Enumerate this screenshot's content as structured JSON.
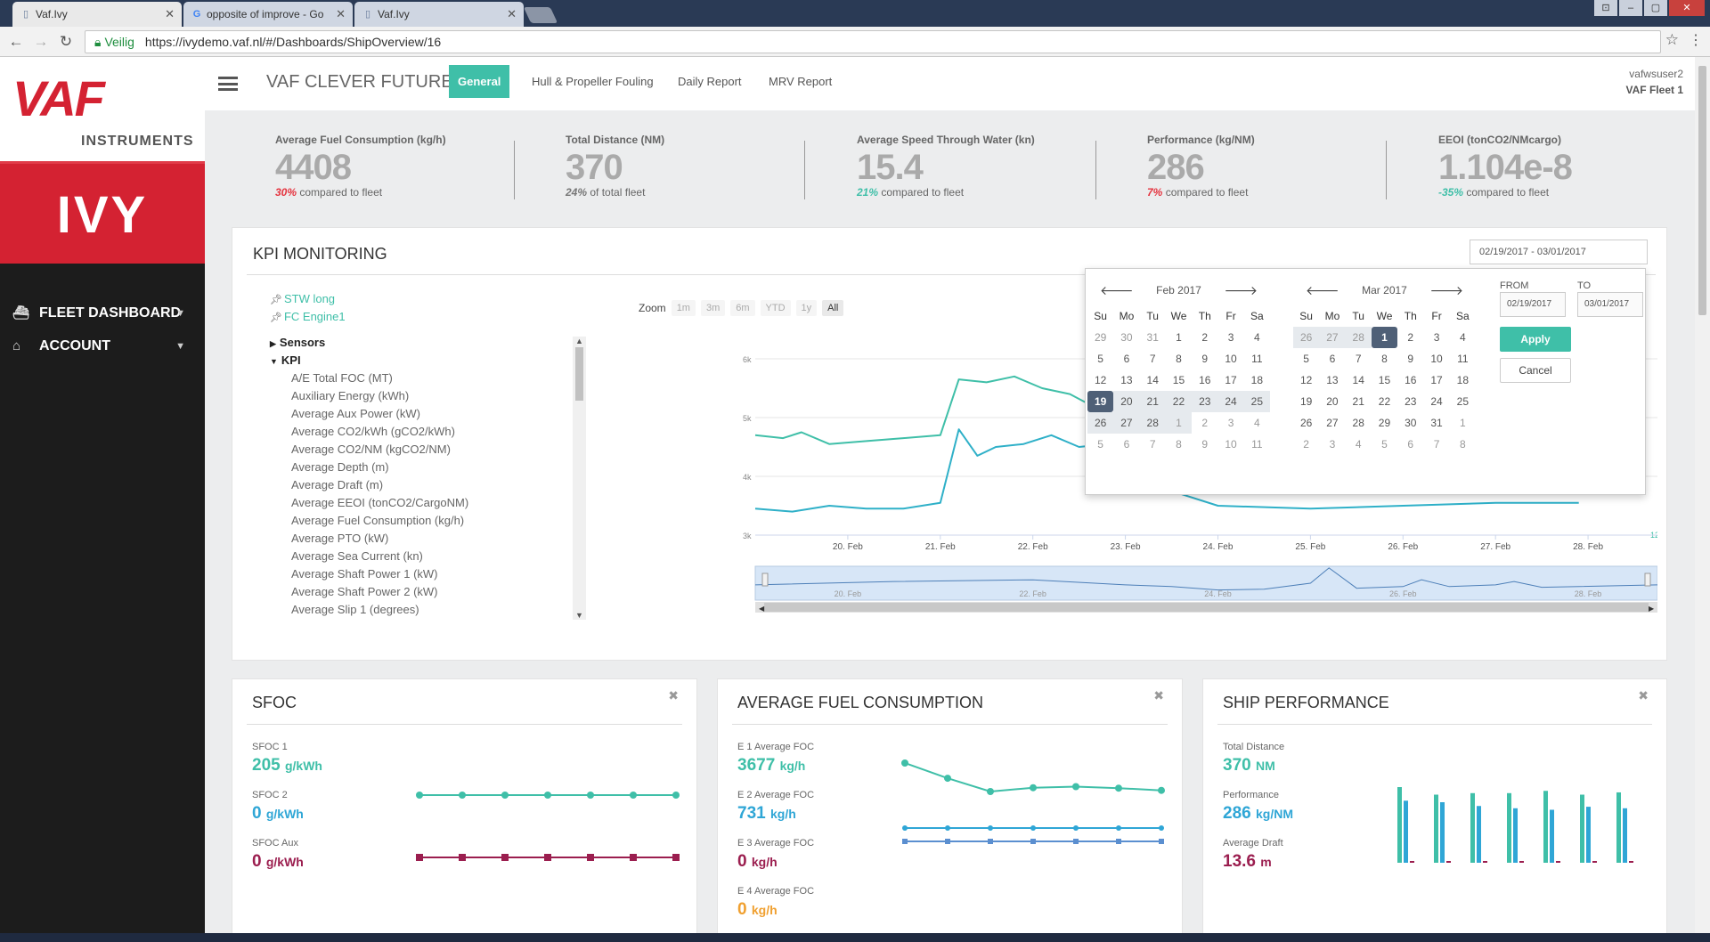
{
  "browser": {
    "tabs": [
      {
        "title": "Vaf.Ivy"
      },
      {
        "title": "opposite of improve - Go"
      },
      {
        "title": "Vaf.Ivy"
      }
    ],
    "secure_label": "Veilig",
    "url": "https://ivydemo.vaf.nl/#/Dashboards/ShipOverview/16"
  },
  "sidebar": {
    "logo_vaf": "VAF",
    "logo_instruments": "INSTRUMENTS",
    "app_name": "IVY",
    "items": [
      {
        "label": "FLEET DASHBOARD",
        "icon": "ship-icon"
      },
      {
        "label": "ACCOUNT",
        "icon": "home-icon"
      }
    ]
  },
  "topnav": {
    "brand": "VAF CLEVER FUTURE",
    "tabs": [
      {
        "label": "General",
        "active": true
      },
      {
        "label": "Hull & Propeller Fouling"
      },
      {
        "label": "Daily Report"
      },
      {
        "label": "MRV Report"
      }
    ],
    "user": "vafwsuser2",
    "fleet": "VAF Fleet 1"
  },
  "summary": [
    {
      "title": "Average Fuel Consumption (kg/h)",
      "value": "4408",
      "pct": "30%",
      "pct_color": "#e5343f",
      "compare": "compared to fleet"
    },
    {
      "title": "Total Distance (NM)",
      "value": "370",
      "pct": "24%",
      "pct_color": "#777777",
      "compare": "of total fleet"
    },
    {
      "title": "Average Speed Through Water (kn)",
      "value": "15.4",
      "pct": "21%",
      "pct_color": "#3fbfa8",
      "compare": "compared to fleet"
    },
    {
      "title": "Performance (kg/NM)",
      "value": "286",
      "pct": "7%",
      "pct_color": "#e5343f",
      "compare": "compared to fleet"
    },
    {
      "title": "EEOI (tonCO2/NMcargo)",
      "value": "1.104e-8",
      "pct": "-35%",
      "pct_color": "#3fbfa8",
      "compare": "compared to fleet"
    }
  ],
  "kpi": {
    "title": "KPI MONITORING",
    "date_range": "02/19/2017 - 03/01/2017",
    "pinned": [
      "STW long",
      "FC Engine1"
    ],
    "folders": [
      "Sensors",
      "KPI"
    ],
    "kpi_items": [
      "A/E Total FOC (MT)",
      "Auxiliary Energy (kWh)",
      "Average Aux Power (kW)",
      "Average CO2/kWh (gCO2/kWh)",
      "Average CO2/NM (kgCO2/NM)",
      "Average Depth (m)",
      "Average Draft (m)",
      "Average EEOI (tonCO2/CargoNM)",
      "Average Fuel Consumption (kg/h)",
      "Average PTO (kW)",
      "Average Sea Current (kn)",
      "Average Shaft Power 1 (kW)",
      "Average Shaft Power 2 (kW)",
      "Average Slip 1 (degrees)"
    ],
    "zoom_label": "Zoom",
    "zoom_options": [
      "1m",
      "3m",
      "6m",
      "YTD",
      "1y",
      "All"
    ],
    "zoom_active": "All"
  },
  "chart_data": {
    "type": "line",
    "yticks": [
      "6k",
      "5k",
      "4k",
      "3k"
    ],
    "ylim": [
      3000,
      6000
    ],
    "xticks": [
      "20. Feb",
      "21. Feb",
      "22. Feb",
      "23. Feb",
      "24. Feb",
      "25. Feb",
      "26. Feb",
      "27. Feb",
      "28. Feb"
    ],
    "navigator_ticks": [
      "20. Feb",
      "22. Feb",
      "24. Feb",
      "26. Feb",
      "28. Feb"
    ],
    "right_axis_tick": "12",
    "series": [
      {
        "color": "#3fbfa8",
        "x": [
          19.0,
          19.3,
          19.5,
          19.8,
          20.2,
          20.6,
          21.0,
          21.2,
          21.5,
          21.8,
          22.1,
          22.4,
          22.7,
          23.0,
          23.3,
          23.5,
          24.0,
          25.0,
          26.0,
          27.0,
          27.9
        ],
        "values": [
          4700,
          4650,
          4750,
          4550,
          4600,
          4650,
          4700,
          5650,
          5600,
          5700,
          5500,
          5400,
          5150,
          4950,
          4800,
          4600,
          3800,
          3700,
          3700,
          3750,
          3800
        ]
      },
      {
        "color": "#2fb0c8",
        "x": [
          19.0,
          19.4,
          19.8,
          20.2,
          20.6,
          21.0,
          21.2,
          21.4,
          21.6,
          21.9,
          22.2,
          22.5,
          22.8,
          23.1,
          23.4,
          23.6,
          24.0,
          25.0,
          26.0,
          27.0,
          27.9
        ],
        "values": [
          3450,
          3400,
          3500,
          3450,
          3450,
          3550,
          4800,
          4350,
          4500,
          4550,
          4700,
          4500,
          4550,
          4750,
          4500,
          3700,
          3500,
          3450,
          3500,
          3550,
          3550
        ]
      }
    ]
  },
  "datepicker": {
    "left": {
      "month": "Feb 2017",
      "days": [
        "Su",
        "Mo",
        "Tu",
        "We",
        "Th",
        "Fr",
        "Sa"
      ],
      "weeks": [
        [
          "29",
          "30",
          "31",
          "1",
          "2",
          "3",
          "4"
        ],
        [
          "5",
          "6",
          "7",
          "8",
          "9",
          "10",
          "11"
        ],
        [
          "12",
          "13",
          "14",
          "15",
          "16",
          "17",
          "18"
        ],
        [
          "19",
          "20",
          "21",
          "22",
          "23",
          "24",
          "25"
        ],
        [
          "26",
          "27",
          "28",
          "1",
          "2",
          "3",
          "4"
        ],
        [
          "5",
          "6",
          "7",
          "8",
          "9",
          "10",
          "11"
        ]
      ]
    },
    "right": {
      "month": "Mar 2017",
      "days": [
        "Su",
        "Mo",
        "Tu",
        "We",
        "Th",
        "Fr",
        "Sa"
      ],
      "weeks": [
        [
          "26",
          "27",
          "28",
          "1",
          "2",
          "3",
          "4"
        ],
        [
          "5",
          "6",
          "7",
          "8",
          "9",
          "10",
          "11"
        ],
        [
          "12",
          "13",
          "14",
          "15",
          "16",
          "17",
          "18"
        ],
        [
          "19",
          "20",
          "21",
          "22",
          "23",
          "24",
          "25"
        ],
        [
          "26",
          "27",
          "28",
          "29",
          "30",
          "31",
          "1"
        ],
        [
          "2",
          "3",
          "4",
          "5",
          "6",
          "7",
          "8"
        ]
      ]
    },
    "from_label": "FROM",
    "to_label": "TO",
    "from_value": "02/19/2017",
    "to_value": "03/01/2017",
    "apply": "Apply",
    "cancel": "Cancel"
  },
  "cards": [
    {
      "title": "SFOC",
      "metrics": [
        {
          "label": "SFOC 1",
          "value": "205",
          "unit": "g/kWh",
          "color": "#3fbfa8"
        },
        {
          "label": "SFOC 2",
          "value": "0",
          "unit": "g/kWh",
          "color": "#2fa6d6"
        },
        {
          "label": "SFOC Aux",
          "value": "0",
          "unit": "g/kWh",
          "color": "#9b1e4f"
        }
      ]
    },
    {
      "title": "AVERAGE FUEL CONSUMPTION",
      "metrics": [
        {
          "label": "E 1 Average FOC",
          "value": "3677",
          "unit": "kg/h",
          "color": "#3fbfa8"
        },
        {
          "label": "E 2 Average FOC",
          "value": "731",
          "unit": "kg/h",
          "color": "#2fa6d6"
        },
        {
          "label": "E 3 Average FOC",
          "value": "0",
          "unit": "kg/h",
          "color": "#9b1e4f"
        },
        {
          "label": "E 4 Average FOC",
          "value": "0",
          "unit": "kg/h",
          "color": "#f0a030"
        }
      ]
    },
    {
      "title": "SHIP PERFORMANCE",
      "metrics": [
        {
          "label": "Total Distance",
          "value": "370",
          "unit": "NM",
          "color": "#3fbfa8"
        },
        {
          "label": "Performance",
          "value": "286",
          "unit": "kg/NM",
          "color": "#2fa6d6"
        },
        {
          "label": "Average Draft",
          "value": "13.6",
          "unit": "m",
          "color": "#9b1e4f"
        }
      ]
    }
  ],
  "mini_series": {
    "sfoc": [
      {
        "color": "#3fbfa8",
        "values": [
          205,
          206,
          206,
          206,
          206,
          206,
          206
        ]
      },
      {
        "color": "#9b1e4f",
        "values": [
          0,
          0,
          0,
          0,
          0,
          0,
          0
        ]
      }
    ],
    "afc": [
      {
        "color": "#3fbfa8",
        "values": [
          4500,
          4100,
          3750,
          3850,
          3880,
          3840,
          3780
        ]
      },
      {
        "color": "#2fa6d6",
        "values": [
          731,
          740,
          745,
          745,
          744,
          748,
          752
        ]
      },
      {
        "color": "#5b8fd0",
        "values": [
          400,
          400,
          400,
          400,
          400,
          400,
          400
        ]
      }
    ],
    "perf_bars": [
      {
        "teal": 1.0,
        "blue": 0.82
      },
      {
        "teal": 0.9,
        "blue": 0.8
      },
      {
        "teal": 0.92,
        "blue": 0.75
      },
      {
        "teal": 0.92,
        "blue": 0.72
      },
      {
        "teal": 0.95,
        "blue": 0.7
      },
      {
        "teal": 0.9,
        "blue": 0.74
      },
      {
        "teal": 0.93,
        "blue": 0.72
      }
    ]
  }
}
